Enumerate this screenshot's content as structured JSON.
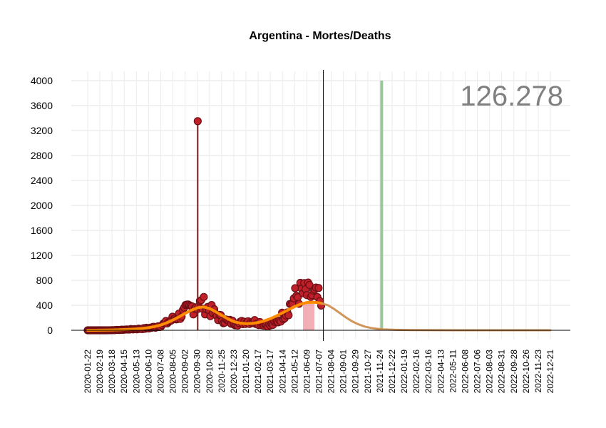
{
  "chart_data": {
    "type": "scatter",
    "title": "Argentina - Mortes/Deaths",
    "total_label": "126.278",
    "xlabel": "",
    "ylabel": "",
    "ylim": [
      0,
      4000
    ],
    "y_ticks": [
      0,
      400,
      800,
      1200,
      1600,
      2000,
      2400,
      2800,
      3200,
      3600,
      4000
    ],
    "x_tick_labels": [
      "2020-01-22",
      "2020-02-19",
      "2020-03-18",
      "2020-04-15",
      "2020-05-13",
      "2020-06-10",
      "2020-07-08",
      "2020-08-05",
      "2020-09-02",
      "2020-09-30",
      "2020-10-28",
      "2020-11-25",
      "2020-12-23",
      "2021-01-20",
      "2021-02-17",
      "2021-03-17",
      "2021-04-14",
      "2021-05-12",
      "2021-06-09",
      "2021-07-07",
      "2021-08-04",
      "2021-09-01",
      "2021-09-29",
      "2021-10-27",
      "2021-11-24",
      "2021-12-22",
      "2022-01-19",
      "2022-02-16",
      "2022-03-16",
      "2022-04-13",
      "2022-05-11",
      "2022-06-08",
      "2022-07-06",
      "2022-08-03",
      "2022-08-31",
      "2022-09-28",
      "2022-10-26",
      "2022-11-23",
      "2022-12-21"
    ],
    "x_range": [
      "2020-01-22",
      "2022-12-21"
    ],
    "current_date": "2021-07-17",
    "outlier": {
      "date": "2020-10-01",
      "value": 3350
    },
    "vertical_markers": [
      {
        "date": "2021-07-17",
        "color": "#000000"
      },
      {
        "date": "2021-11-28",
        "color": "#9bc59b"
      }
    ],
    "series": [
      {
        "name": "",
        "kind": "observed",
        "weekly_dates": [
          "2020-01-22",
          "2020-02-05",
          "2020-02-19",
          "2020-03-04",
          "2020-03-18",
          "2020-04-01",
          "2020-04-15",
          "2020-04-29",
          "2020-05-13",
          "2020-05-27",
          "2020-06-10",
          "2020-06-24",
          "2020-07-08",
          "2020-07-22",
          "2020-08-05",
          "2020-08-19",
          "2020-09-02",
          "2020-09-16",
          "2020-09-30",
          "2020-10-14",
          "2020-10-28",
          "2020-11-11",
          "2020-11-25",
          "2020-12-09",
          "2020-12-23",
          "2021-01-06",
          "2021-01-20",
          "2021-02-03",
          "2021-02-17",
          "2021-03-03",
          "2021-03-17",
          "2021-03-31",
          "2021-04-14",
          "2021-04-28",
          "2021-05-12",
          "2021-05-26",
          "2021-06-09",
          "2021-06-23",
          "2021-07-07",
          "2021-07-14"
        ],
        "values": [
          0,
          0,
          0,
          0,
          2,
          5,
          10,
          15,
          20,
          25,
          35,
          50,
          80,
          120,
          180,
          230,
          300,
          360,
          420,
          410,
          330,
          250,
          180,
          140,
          120,
          110,
          150,
          140,
          130,
          100,
          80,
          120,
          230,
          360,
          520,
          600,
          580,
          560,
          500,
          250
        ]
      },
      {
        "name": "",
        "kind": "smoothed",
        "color": "#ff8c00",
        "weekly_dates": [
          "2020-01-22",
          "2020-02-05",
          "2020-02-19",
          "2020-03-04",
          "2020-03-18",
          "2020-04-01",
          "2020-04-15",
          "2020-04-29",
          "2020-05-13",
          "2020-05-27",
          "2020-06-10",
          "2020-06-24",
          "2020-07-08",
          "2020-07-22",
          "2020-08-05",
          "2020-08-19",
          "2020-09-02",
          "2020-09-16",
          "2020-09-30",
          "2020-10-14",
          "2020-10-28",
          "2020-11-11",
          "2020-11-25",
          "2020-12-09",
          "2020-12-23",
          "2021-01-06",
          "2021-01-20",
          "2021-02-03",
          "2021-02-17",
          "2021-03-03",
          "2021-03-17",
          "2021-03-31",
          "2021-04-14",
          "2021-04-28",
          "2021-05-12",
          "2021-05-26",
          "2021-06-09",
          "2021-06-23",
          "2021-07-07",
          "2021-07-14"
        ],
        "values": [
          0,
          0,
          1,
          2,
          4,
          7,
          11,
          16,
          22,
          30,
          42,
          60,
          85,
          120,
          165,
          215,
          270,
          320,
          360,
          375,
          350,
          300,
          240,
          185,
          140,
          115,
          105,
          110,
          125,
          150,
          185,
          230,
          280,
          330,
          380,
          420,
          445,
          450,
          440,
          430
        ]
      },
      {
        "name": "",
        "kind": "projection",
        "color": "#d2955a",
        "weekly_dates": [
          "2021-07-14",
          "2021-07-28",
          "2021-08-11",
          "2021-08-25",
          "2021-09-08",
          "2021-09-22",
          "2021-10-06",
          "2021-10-20",
          "2021-11-03",
          "2021-11-17",
          "2021-12-01",
          "2021-12-29",
          "2022-02-01",
          "2022-04-01",
          "2022-07-01",
          "2022-12-21"
        ],
        "values": [
          430,
          400,
          340,
          270,
          200,
          140,
          95,
          60,
          38,
          24,
          15,
          7,
          3,
          1,
          0,
          0
        ]
      }
    ],
    "grid": true,
    "legend": "none"
  }
}
